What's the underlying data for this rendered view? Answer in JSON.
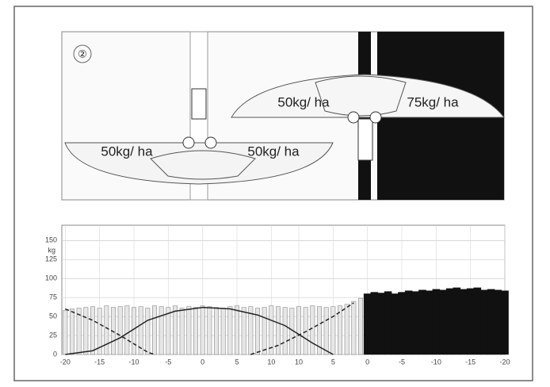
{
  "diagram": {
    "marker": "②",
    "labels": [
      "50kg/ ha",
      "50kg/ ha",
      "50kg/ ha",
      "75kg/ ha"
    ]
  },
  "chart_data": {
    "type": "bar",
    "y_label": "kg",
    "xlim": [
      -0.5,
      64
    ],
    "ylim": [
      0,
      165
    ],
    "xticks": [
      {
        "value": 0,
        "label": "-20"
      },
      {
        "value": 5,
        "label": "-15"
      },
      {
        "value": 10,
        "label": "-10"
      },
      {
        "value": 15,
        "label": "-5"
      },
      {
        "value": 20,
        "label": "0"
      },
      {
        "value": 25,
        "label": "5"
      },
      {
        "value": 30,
        "label": "10"
      },
      {
        "value": 34,
        "label": "10"
      },
      {
        "value": 39,
        "label": "5"
      },
      {
        "value": 44,
        "label": "0"
      },
      {
        "value": 49,
        "label": "-5"
      },
      {
        "value": 54,
        "label": "-10"
      },
      {
        "value": 59,
        "label": "-15"
      },
      {
        "value": 64,
        "label": "-20"
      }
    ],
    "yticks": [
      0,
      25,
      50,
      75,
      100,
      125,
      150
    ],
    "grid": true,
    "bars": [
      {
        "color": "#e6e6e6",
        "stroke": "#8a8a8a",
        "x": [
          0,
          1,
          2,
          3,
          4,
          5,
          6,
          7,
          8,
          9,
          10,
          11,
          12,
          13,
          14,
          15,
          16,
          17,
          18,
          19,
          20,
          21,
          22,
          23,
          24,
          25,
          26,
          27,
          28,
          29,
          30,
          31,
          32,
          33,
          34,
          35,
          36,
          37,
          38,
          39,
          40,
          41,
          42,
          43
        ],
        "values": [
          58,
          60,
          61,
          62,
          63,
          61,
          64,
          62,
          63,
          64,
          62,
          63,
          61,
          64,
          63,
          62,
          64,
          61,
          63,
          62,
          64,
          63,
          62,
          61,
          63,
          64,
          62,
          63,
          61,
          62,
          64,
          63,
          62,
          61,
          63,
          62,
          64,
          63,
          62,
          63,
          64,
          66,
          70,
          74
        ]
      },
      {
        "color": "#111111",
        "stroke": "#111111",
        "x": [
          44,
          45,
          46,
          47,
          48,
          49,
          50,
          51,
          52,
          53,
          54,
          55,
          56,
          57,
          58,
          59,
          60,
          61,
          62,
          63,
          64
        ],
        "values": [
          80,
          82,
          81,
          83,
          80,
          82,
          84,
          83,
          85,
          84,
          86,
          85,
          87,
          88,
          86,
          87,
          88,
          85,
          86,
          85,
          84
        ]
      }
    ],
    "lines": [
      {
        "color": "#222222",
        "dashed": true,
        "x": [
          0,
          4,
          8,
          12,
          13
        ],
        "values": [
          60,
          45,
          25,
          3,
          0
        ]
      },
      {
        "color": "#222222",
        "dashed": false,
        "x": [
          0,
          4,
          8,
          12,
          16,
          20,
          24,
          28,
          32,
          36,
          39
        ],
        "values": [
          0,
          5,
          22,
          45,
          57,
          62,
          60,
          52,
          38,
          15,
          0
        ]
      },
      {
        "color": "#222222",
        "dashed": true,
        "x": [
          27,
          31,
          35,
          39,
          42
        ],
        "values": [
          0,
          12,
          30,
          50,
          68
        ]
      }
    ]
  }
}
